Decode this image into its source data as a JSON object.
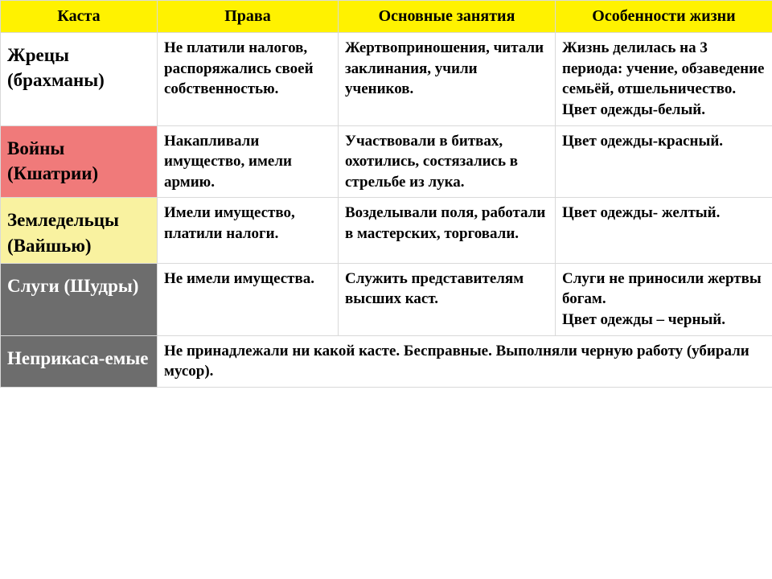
{
  "header": {
    "bg": "#fff200",
    "text_color": "#000000",
    "cols": [
      "Каста",
      "Права",
      "Основные занятия",
      "Особенности  жизни"
    ]
  },
  "rows": [
    {
      "caste_bg": "#ffffff",
      "caste_color": "#000000",
      "caste": "Жрецы (брахманы)",
      "rights": "Не платили налогов, распоряжались своей собственностью.",
      "occup": "Жертвоприношения, читали заклинания, учили учеников.",
      "life": "Жизнь делилась на 3 периода: учение, обзаведение семьёй, отшельничество.\n Цвет одежды-белый."
    },
    {
      "caste_bg": "#f07a7a",
      "caste_color": "#000000",
      "caste": "Войны (Кшатрии)",
      "rights": "Накапливали имущество, имели армию.",
      "occup": "Участвовали в битвах, охотились, состязались в стрельбе из лука.",
      "life": " Цвет одежды-красный."
    },
    {
      "caste_bg": "#f9f2a0",
      "caste_color": "#000000",
      "caste": "Земледельцы (Вайшью)",
      "rights": "Имели имущество, платили налоги.",
      "occup": "Возделывали поля, работали в мастерских, торговали.",
      "life": " Цвет одежды- желтый."
    },
    {
      "caste_bg": "#6d6d6d",
      "caste_color": "#ffffff",
      "caste": "Слуги (Шудры)",
      "rights": "Не имели имущества.",
      "occup": "Служить представителям высших каст.",
      "life": "Слуги не  приносили жертвы богам.\nЦвет одежды – черный."
    }
  ],
  "last_row": {
    "caste_bg": "#6d6d6d",
    "caste_color": "#ffffff",
    "caste": "Неприкаса-емые",
    "merged": "Не принадлежали ни  какой касте. Бесправные.  Выполняли черную работу (убирали мусор)."
  }
}
